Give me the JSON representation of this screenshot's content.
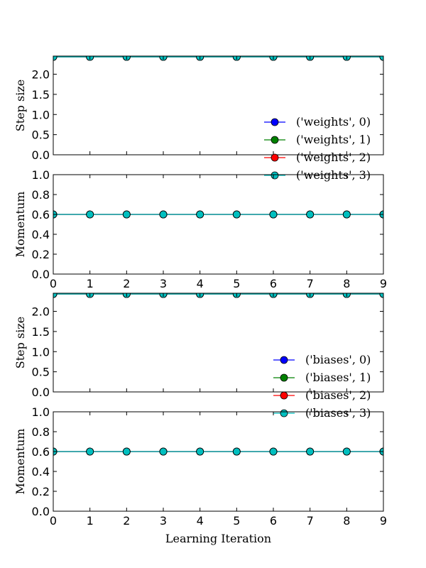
{
  "chart_data": [
    {
      "type": "line",
      "ylabel": "Step size",
      "xlabel": "",
      "xlim": [
        0,
        9
      ],
      "ylim": [
        0.0,
        2.45
      ],
      "yticks": [
        "0.0",
        "0.5",
        "1.0",
        "1.5",
        "2.0"
      ],
      "ytick_values": [
        0.0,
        0.5,
        1.0,
        1.5,
        2.0
      ],
      "xtick_labels_shown": false,
      "x": [
        0,
        1,
        2,
        3,
        4,
        5,
        6,
        7,
        8,
        9
      ],
      "legend_position": "bottom-right",
      "series": [
        {
          "name": "('weights', 0)",
          "color": "#0000ff",
          "values": [
            2.43,
            2.43,
            2.43,
            2.43,
            2.43,
            2.43,
            2.43,
            2.43,
            2.43,
            2.43
          ]
        },
        {
          "name": "('weights', 1)",
          "color": "#008000",
          "values": [
            2.43,
            2.43,
            2.43,
            2.43,
            2.43,
            2.43,
            2.43,
            2.43,
            2.43,
            2.43
          ]
        },
        {
          "name": "('weights', 2)",
          "color": "#ff0000",
          "values": [
            2.43,
            2.43,
            2.43,
            2.43,
            2.43,
            2.43,
            2.43,
            2.43,
            2.43,
            2.43
          ]
        },
        {
          "name": "('weights', 3)",
          "color": "#00bfbf",
          "values": [
            2.43,
            2.43,
            2.43,
            2.43,
            2.43,
            2.43,
            2.43,
            2.43,
            2.43,
            2.43
          ]
        }
      ]
    },
    {
      "type": "line",
      "ylabel": "Momentum",
      "xlabel": "",
      "xlim": [
        0,
        9
      ],
      "ylim": [
        0.0,
        1.0
      ],
      "yticks": [
        "0.0",
        "0.2",
        "0.4",
        "0.6",
        "0.8",
        "1.0"
      ],
      "ytick_values": [
        0.0,
        0.2,
        0.4,
        0.6,
        0.8,
        1.0
      ],
      "xtick_labels_shown": true,
      "xticks": [
        "0",
        "1",
        "2",
        "3",
        "4",
        "5",
        "6",
        "7",
        "8",
        "9"
      ],
      "x": [
        0,
        1,
        2,
        3,
        4,
        5,
        6,
        7,
        8,
        9
      ],
      "series": [
        {
          "name": "('weights', 0)",
          "color": "#0000ff",
          "values": [
            0.6,
            0.6,
            0.6,
            0.6,
            0.6,
            0.6,
            0.6,
            0.6,
            0.6,
            0.6
          ]
        },
        {
          "name": "('weights', 1)",
          "color": "#008000",
          "values": [
            0.6,
            0.6,
            0.6,
            0.6,
            0.6,
            0.6,
            0.6,
            0.6,
            0.6,
            0.6
          ]
        },
        {
          "name": "('weights', 2)",
          "color": "#ff0000",
          "values": [
            0.6,
            0.6,
            0.6,
            0.6,
            0.6,
            0.6,
            0.6,
            0.6,
            0.6,
            0.6
          ]
        },
        {
          "name": "('weights', 3)",
          "color": "#00bfbf",
          "values": [
            0.6,
            0.6,
            0.6,
            0.6,
            0.6,
            0.6,
            0.6,
            0.6,
            0.6,
            0.6
          ]
        }
      ]
    },
    {
      "type": "line",
      "ylabel": "Step size",
      "xlabel": "",
      "xlim": [
        0,
        9
      ],
      "ylim": [
        0.0,
        2.45
      ],
      "yticks": [
        "0.0",
        "0.5",
        "1.0",
        "1.5",
        "2.0"
      ],
      "ytick_values": [
        0.0,
        0.5,
        1.0,
        1.5,
        2.0
      ],
      "xtick_labels_shown": false,
      "x": [
        0,
        1,
        2,
        3,
        4,
        5,
        6,
        7,
        8,
        9
      ],
      "legend_position": "bottom-right",
      "series": [
        {
          "name": "('biases', 0)",
          "color": "#0000ff",
          "values": [
            2.43,
            2.43,
            2.43,
            2.43,
            2.43,
            2.43,
            2.43,
            2.43,
            2.43,
            2.43
          ]
        },
        {
          "name": "('biases', 1)",
          "color": "#008000",
          "values": [
            2.43,
            2.43,
            2.43,
            2.43,
            2.43,
            2.43,
            2.43,
            2.43,
            2.43,
            2.43
          ]
        },
        {
          "name": "('biases', 2)",
          "color": "#ff0000",
          "values": [
            2.43,
            2.43,
            2.43,
            2.43,
            2.43,
            2.43,
            2.43,
            2.43,
            2.43,
            2.43
          ]
        },
        {
          "name": "('biases', 3)",
          "color": "#00bfbf",
          "values": [
            2.43,
            2.43,
            2.43,
            2.43,
            2.43,
            2.43,
            2.43,
            2.43,
            2.43,
            2.43
          ]
        }
      ]
    },
    {
      "type": "line",
      "ylabel": "Momentum",
      "xlabel": "Learning Iteration",
      "xlim": [
        0,
        9
      ],
      "ylim": [
        0.0,
        1.0
      ],
      "yticks": [
        "0.0",
        "0.2",
        "0.4",
        "0.6",
        "0.8",
        "1.0"
      ],
      "ytick_values": [
        0.0,
        0.2,
        0.4,
        0.6,
        0.8,
        1.0
      ],
      "xtick_labels_shown": true,
      "xticks": [
        "0",
        "1",
        "2",
        "3",
        "4",
        "5",
        "6",
        "7",
        "8",
        "9"
      ],
      "x": [
        0,
        1,
        2,
        3,
        4,
        5,
        6,
        7,
        8,
        9
      ],
      "series": [
        {
          "name": "('biases', 0)",
          "color": "#0000ff",
          "values": [
            0.6,
            0.6,
            0.6,
            0.6,
            0.6,
            0.6,
            0.6,
            0.6,
            0.6,
            0.6
          ]
        },
        {
          "name": "('biases', 1)",
          "color": "#008000",
          "values": [
            0.6,
            0.6,
            0.6,
            0.6,
            0.6,
            0.6,
            0.6,
            0.6,
            0.6,
            0.6
          ]
        },
        {
          "name": "('biases', 2)",
          "color": "#ff0000",
          "values": [
            0.6,
            0.6,
            0.6,
            0.6,
            0.6,
            0.6,
            0.6,
            0.6,
            0.6,
            0.6
          ]
        },
        {
          "name": "('biases', 3)",
          "color": "#00bfbf",
          "values": [
            0.6,
            0.6,
            0.6,
            0.6,
            0.6,
            0.6,
            0.6,
            0.6,
            0.6,
            0.6
          ]
        }
      ]
    }
  ]
}
